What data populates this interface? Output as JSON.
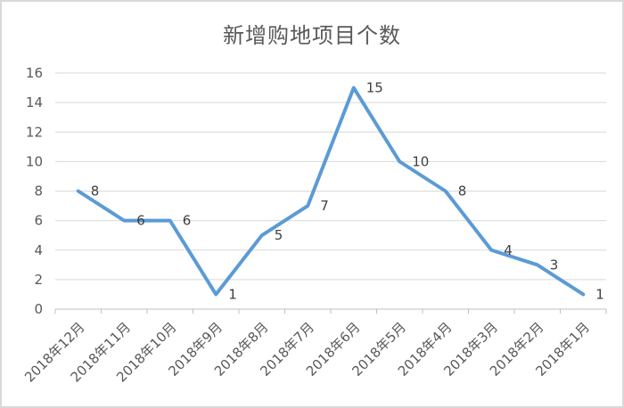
{
  "chart_data": {
    "type": "line",
    "title": "新增购地项目个数",
    "categories": [
      "2018年12月",
      "2018年11月",
      "2018年10月",
      "2018年9月",
      "2018年8月",
      "2018年7月",
      "2018年6月",
      "2018年5月",
      "2018年4月",
      "2018年3月",
      "2018年2月",
      "2018年1月"
    ],
    "values": [
      8,
      6,
      6,
      1,
      5,
      7,
      15,
      10,
      8,
      4,
      3,
      1
    ],
    "y_ticks": [
      0,
      2,
      4,
      6,
      8,
      10,
      12,
      14,
      16
    ],
    "ylim": [
      0,
      16
    ],
    "grid": true,
    "legend_position": "none",
    "data_labels_position": "right",
    "x_label_rotation_deg": -45,
    "colors": {
      "line": "#5B9BD5",
      "gridline": "#D9D9D9",
      "axis": "#BFBFBF",
      "data_label": "#404040",
      "tick_label": "#595959",
      "title": "#595959",
      "frame_border": "#D9D9D9",
      "background": "#FFFFFF"
    }
  }
}
